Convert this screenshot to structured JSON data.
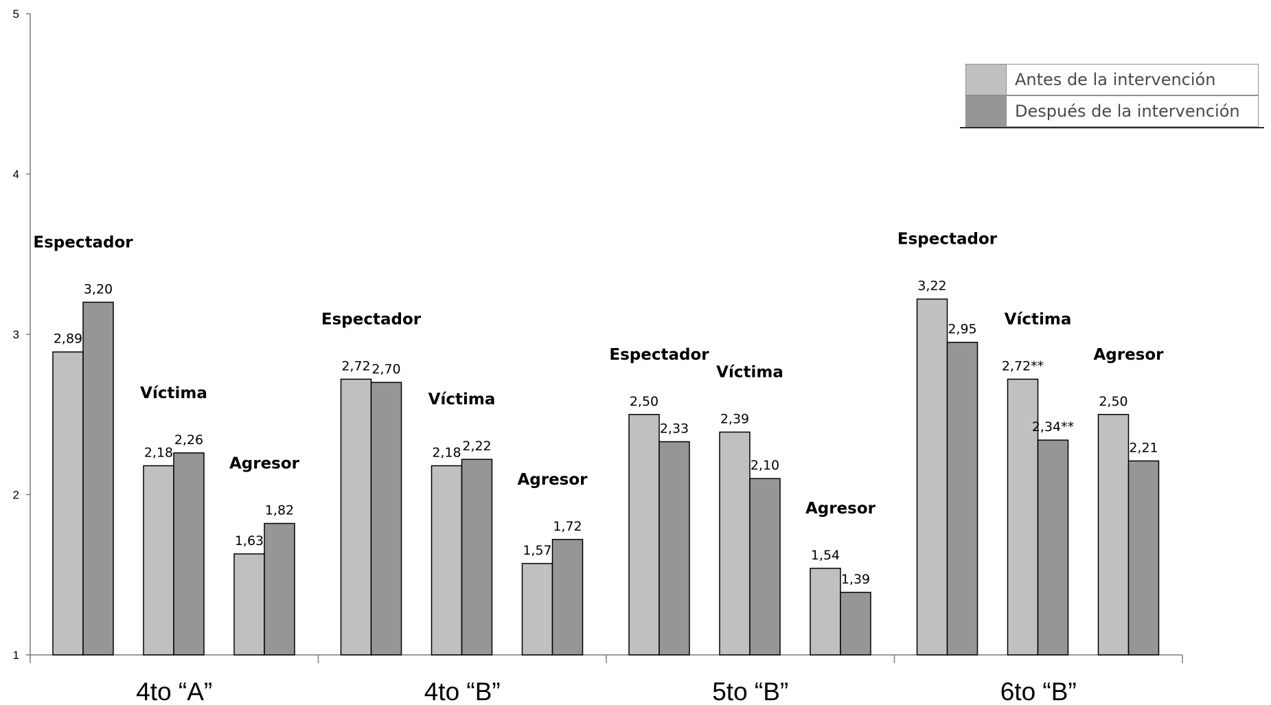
{
  "chart_data": {
    "type": "bar",
    "ylim": [
      1,
      5
    ],
    "yticks": [
      "1",
      "2",
      "3",
      "4",
      "5"
    ],
    "groups": [
      {
        "label": "4to “A”",
        "roles": [
          {
            "name": "Espectador",
            "values": [
              2.89,
              3.2
            ],
            "labels": [
              "2,89",
              "3,20"
            ]
          },
          {
            "name": "Víctima",
            "values": [
              2.18,
              2.26
            ],
            "labels": [
              "2,18",
              "2,26"
            ]
          },
          {
            "name": "Agresor",
            "values": [
              1.63,
              1.82
            ],
            "labels": [
              "1,63",
              "1,82"
            ]
          }
        ]
      },
      {
        "label": "4to “B”",
        "roles": [
          {
            "name": "Espectador",
            "values": [
              2.72,
              2.7
            ],
            "labels": [
              "2,72",
              "2,70"
            ]
          },
          {
            "name": "Víctima",
            "values": [
              2.18,
              2.22
            ],
            "labels": [
              "2,18",
              "2,22"
            ]
          },
          {
            "name": "Agresor",
            "values": [
              1.57,
              1.72
            ],
            "labels": [
              "1,57",
              "1,72"
            ]
          }
        ]
      },
      {
        "label": "5to “B”",
        "roles": [
          {
            "name": "Espectador",
            "values": [
              2.5,
              2.33
            ],
            "labels": [
              "2,50",
              "2,33"
            ]
          },
          {
            "name": "Víctima",
            "values": [
              2.39,
              2.1
            ],
            "labels": [
              "2,39",
              "2,10"
            ]
          },
          {
            "name": "Agresor",
            "values": [
              1.54,
              1.39
            ],
            "labels": [
              "1,54",
              "1,39"
            ]
          }
        ]
      },
      {
        "label": "6to “B”",
        "roles": [
          {
            "name": "Espectador",
            "values": [
              3.22,
              2.95
            ],
            "labels": [
              "3,22",
              "2,95"
            ]
          },
          {
            "name": "Víctima",
            "values": [
              2.72,
              2.34
            ],
            "labels": [
              "2,72**",
              "2,34**"
            ]
          },
          {
            "name": "Agresor",
            "values": [
              2.5,
              2.21
            ],
            "labels": [
              "2,50",
              "2,21"
            ]
          }
        ]
      }
    ],
    "series": [
      {
        "name": "Antes de la intervención",
        "color": "#c0c0c0"
      },
      {
        "name": "Después de la intervención",
        "color": "#969696"
      }
    ],
    "legend_position": "top-right",
    "grid": false
  }
}
